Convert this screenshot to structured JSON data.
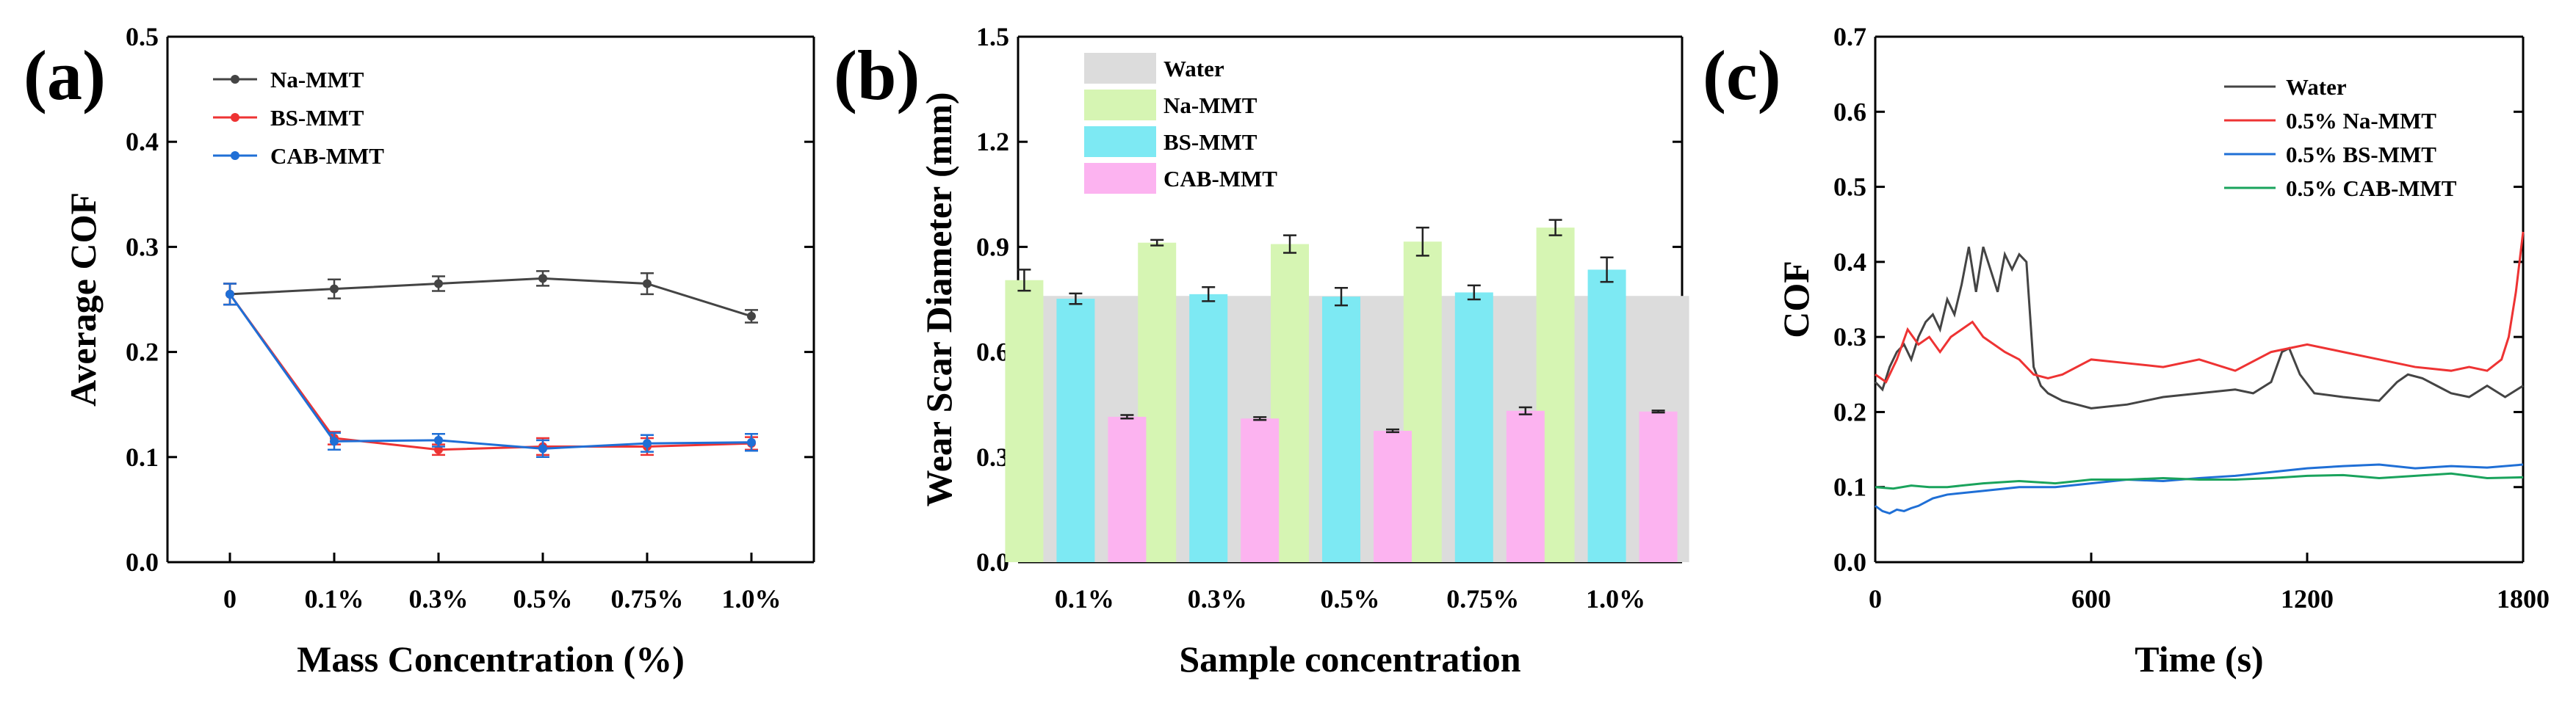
{
  "chart_data": [
    {
      "panel": "(a)",
      "type": "line",
      "xlabel": "Mass Concentration (%)",
      "ylabel": "Average COF",
      "categories": [
        "0",
        "0.1%",
        "0.3%",
        "0.5%",
        "0.75%",
        "1.0%"
      ],
      "ylim": [
        0.0,
        0.5
      ],
      "yticks": [
        "0.0",
        "0.1",
        "0.2",
        "0.3",
        "0.4",
        "0.5"
      ],
      "legend_position": "top-left",
      "series": [
        {
          "name": "Na-MMT",
          "color": "#444444",
          "values": [
            0.255,
            0.26,
            0.265,
            0.27,
            0.265,
            0.234
          ],
          "errors": [
            0.01,
            0.009,
            0.007,
            0.007,
            0.01,
            0.006
          ]
        },
        {
          "name": "BS-MMT",
          "color": "#ee3333",
          "values": [
            0.255,
            0.118,
            0.107,
            0.11,
            0.11,
            0.113
          ],
          "errors": [
            0.01,
            0.006,
            0.005,
            0.008,
            0.008,
            0.006
          ]
        },
        {
          "name": "CAB-MMT",
          "color": "#1f6fd6",
          "values": [
            0.255,
            0.115,
            0.116,
            0.108,
            0.113,
            0.114
          ],
          "errors": [
            0.01,
            0.008,
            0.006,
            0.008,
            0.008,
            0.008
          ]
        }
      ]
    },
    {
      "panel": "(b)",
      "type": "bar",
      "xlabel": "Sample concentration",
      "ylabel": "Wear Scar Diameter (mm)",
      "categories": [
        "0.1%",
        "0.3%",
        "0.5%",
        "0.75%",
        "1.0%"
      ],
      "ylim": [
        0.0,
        1.5
      ],
      "yticks": [
        "0.0",
        "0.3",
        "0.6",
        "0.9",
        "1.2",
        "1.5"
      ],
      "legend_position": "top-left",
      "series": [
        {
          "name": "Water",
          "color": "#dcdcdc",
          "values": [
            0.76,
            0.76,
            0.76,
            0.76,
            0.76
          ]
        },
        {
          "name": "Na-MMT",
          "color": "#d6f5b3",
          "values": [
            0.805,
            0.912,
            0.908,
            0.915,
            0.955
          ],
          "errors": [
            0.03,
            0.008,
            0.025,
            0.04,
            0.022
          ]
        },
        {
          "name": "BS-MMT",
          "color": "#7de9f3",
          "values": [
            0.752,
            0.765,
            0.758,
            0.77,
            0.835
          ],
          "errors": [
            0.015,
            0.02,
            0.025,
            0.02,
            0.035
          ]
        },
        {
          "name": "CAB-MMT",
          "color": "#fcb3f0",
          "values": [
            0.415,
            0.41,
            0.375,
            0.432,
            0.43
          ],
          "errors": [
            0.005,
            0.004,
            0.004,
            0.01,
            0.003
          ]
        }
      ]
    },
    {
      "panel": "(c)",
      "type": "line",
      "xlabel": "Time (s)",
      "ylabel": "COF",
      "xlim": [
        0,
        1800
      ],
      "xticks": [
        0,
        600,
        1200,
        1800
      ],
      "ylim": [
        0.0,
        0.7
      ],
      "yticks": [
        "0.0",
        "0.1",
        "0.2",
        "0.3",
        "0.4",
        "0.5",
        "0.6",
        "0.7"
      ],
      "legend_position": "top-right",
      "series": [
        {
          "name": "Water",
          "color": "#444444",
          "x": [
            0,
            20,
            40,
            60,
            80,
            100,
            120,
            140,
            160,
            180,
            200,
            220,
            240,
            260,
            280,
            300,
            320,
            340,
            360,
            380,
            400,
            420,
            440,
            460,
            480,
            520,
            560,
            600,
            700,
            800,
            900,
            1000,
            1050,
            1100,
            1130,
            1150,
            1180,
            1220,
            1300,
            1400,
            1450,
            1480,
            1520,
            1560,
            1600,
            1650,
            1700,
            1750,
            1800
          ],
          "y": [
            0.24,
            0.23,
            0.26,
            0.28,
            0.29,
            0.27,
            0.3,
            0.32,
            0.33,
            0.31,
            0.35,
            0.33,
            0.37,
            0.42,
            0.36,
            0.42,
            0.39,
            0.36,
            0.41,
            0.39,
            0.41,
            0.4,
            0.26,
            0.235,
            0.225,
            0.215,
            0.21,
            0.205,
            0.21,
            0.22,
            0.225,
            0.23,
            0.225,
            0.24,
            0.28,
            0.285,
            0.25,
            0.225,
            0.22,
            0.215,
            0.24,
            0.25,
            0.245,
            0.235,
            0.225,
            0.22,
            0.235,
            0.22,
            0.235
          ]
        },
        {
          "name": "0.5% Na-MMT",
          "color": "#ee3333",
          "x": [
            0,
            30,
            60,
            90,
            120,
            150,
            180,
            210,
            240,
            270,
            300,
            330,
            360,
            400,
            440,
            480,
            520,
            600,
            700,
            800,
            900,
            1000,
            1100,
            1150,
            1200,
            1300,
            1400,
            1500,
            1600,
            1650,
            1700,
            1740,
            1760,
            1780,
            1800
          ],
          "y": [
            0.25,
            0.24,
            0.27,
            0.31,
            0.29,
            0.3,
            0.28,
            0.3,
            0.31,
            0.32,
            0.3,
            0.29,
            0.28,
            0.27,
            0.25,
            0.245,
            0.25,
            0.27,
            0.265,
            0.26,
            0.27,
            0.255,
            0.28,
            0.285,
            0.29,
            0.28,
            0.27,
            0.26,
            0.255,
            0.26,
            0.255,
            0.27,
            0.3,
            0.36,
            0.44
          ]
        },
        {
          "name": "0.5% BS-MMT",
          "color": "#1f6fd6",
          "x": [
            0,
            20,
            40,
            60,
            80,
            100,
            120,
            160,
            200,
            300,
            400,
            500,
            600,
            700,
            800,
            900,
            1000,
            1100,
            1200,
            1300,
            1400,
            1500,
            1600,
            1700,
            1800
          ],
          "y": [
            0.075,
            0.068,
            0.065,
            0.07,
            0.068,
            0.072,
            0.075,
            0.085,
            0.09,
            0.095,
            0.1,
            0.1,
            0.105,
            0.11,
            0.108,
            0.112,
            0.115,
            0.12,
            0.125,
            0.128,
            0.13,
            0.125,
            0.128,
            0.126,
            0.13
          ]
        },
        {
          "name": "0.5% CAB-MMT",
          "color": "#1aa35c",
          "x": [
            0,
            50,
            100,
            150,
            200,
            300,
            400,
            500,
            600,
            700,
            800,
            900,
            1000,
            1100,
            1200,
            1300,
            1400,
            1500,
            1600,
            1700,
            1800
          ],
          "y": [
            0.1,
            0.098,
            0.102,
            0.1,
            0.1,
            0.105,
            0.108,
            0.105,
            0.11,
            0.11,
            0.112,
            0.11,
            0.11,
            0.112,
            0.115,
            0.116,
            0.112,
            0.115,
            0.118,
            0.112,
            0.113
          ]
        }
      ]
    }
  ]
}
